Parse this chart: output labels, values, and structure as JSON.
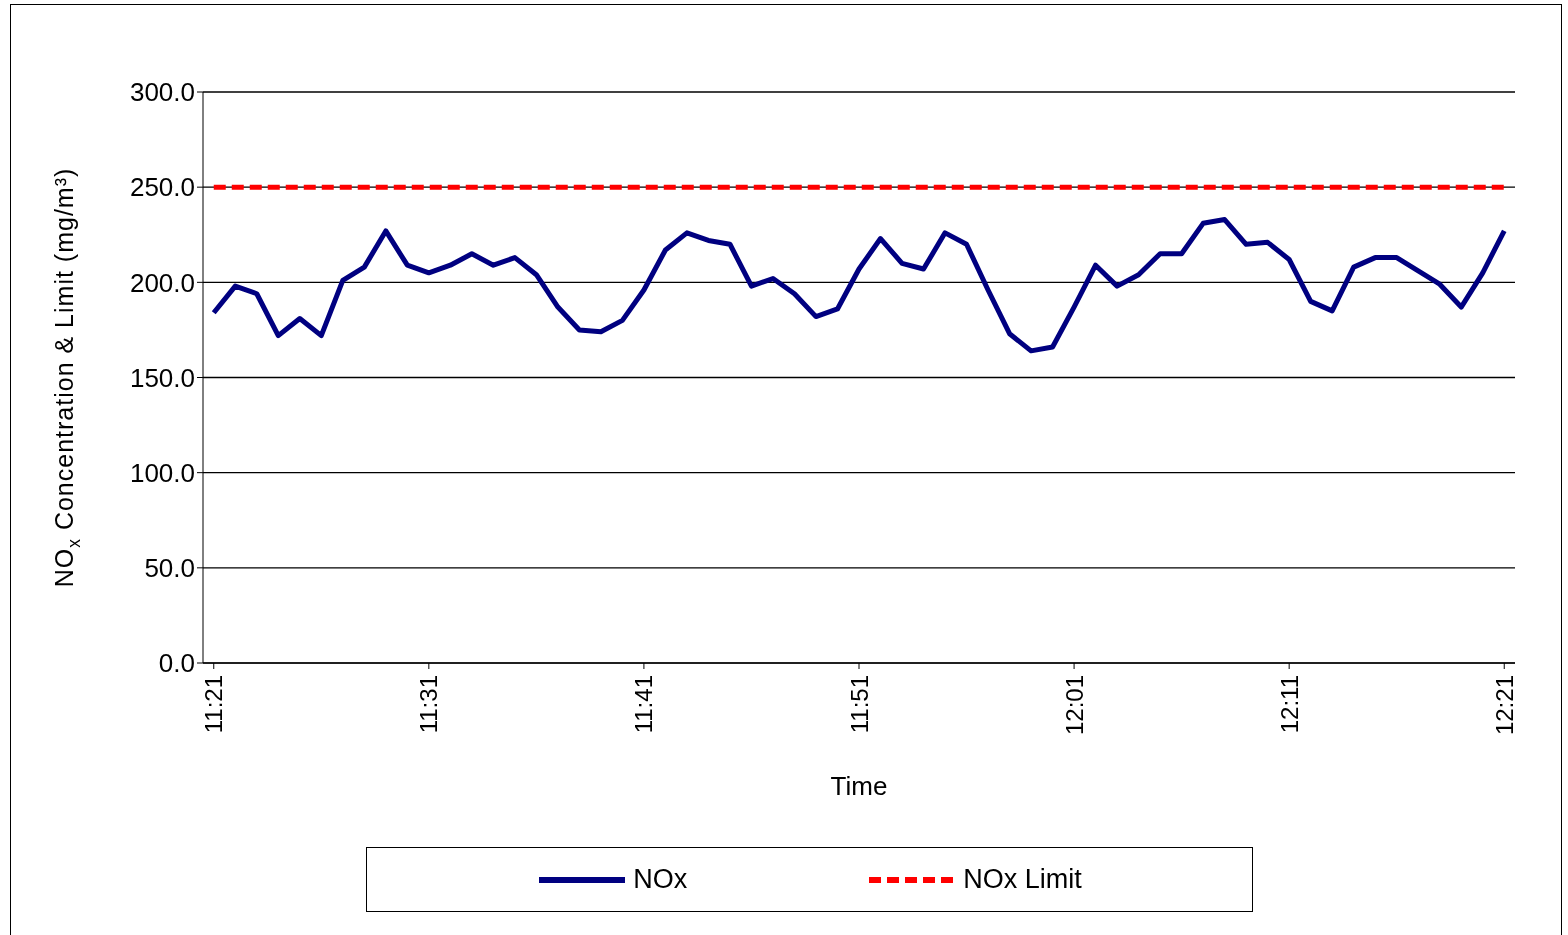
{
  "chart_data": {
    "type": "line",
    "xlabel": "Time",
    "ylabel": "NO$_{x}$ Concentration & Limit (mg/m³)",
    "categories": [
      "11:21",
      null,
      null,
      null,
      null,
      null,
      null,
      null,
      null,
      null,
      "11:31",
      null,
      null,
      null,
      null,
      null,
      null,
      null,
      null,
      null,
      "11:41",
      null,
      null,
      null,
      null,
      null,
      null,
      null,
      null,
      null,
      "11:51",
      null,
      null,
      null,
      null,
      null,
      null,
      null,
      null,
      null,
      "12:01",
      null,
      null,
      null,
      null,
      null,
      null,
      null,
      null,
      null,
      "12:11",
      null,
      null,
      null,
      null,
      null,
      null,
      null,
      null,
      null,
      "12:21"
    ],
    "series": [
      {
        "name": "NOx",
        "color": "#000080",
        "line_style": "solid",
        "values": [
          184,
          198,
          194,
          172,
          181,
          172,
          201,
          208,
          227,
          209,
          205,
          209,
          215,
          209,
          213,
          204,
          187,
          175,
          174,
          180,
          196,
          217,
          226,
          222,
          220,
          198,
          202,
          194,
          182,
          186,
          207,
          223,
          210,
          207,
          226,
          220,
          196,
          173,
          164,
          166,
          187,
          209,
          198,
          204,
          215,
          215,
          231,
          233,
          220,
          221,
          212,
          190,
          185,
          208,
          213,
          213,
          206,
          199,
          187,
          205,
          227
        ]
      },
      {
        "name": "NOx Limit",
        "color": "#ff0000",
        "line_style": "dashed",
        "values": [
          250,
          250,
          250,
          250,
          250,
          250,
          250,
          250,
          250,
          250,
          250,
          250,
          250,
          250,
          250,
          250,
          250,
          250,
          250,
          250,
          250,
          250,
          250,
          250,
          250,
          250,
          250,
          250,
          250,
          250,
          250,
          250,
          250,
          250,
          250,
          250,
          250,
          250,
          250,
          250,
          250,
          250,
          250,
          250,
          250,
          250,
          250,
          250,
          250,
          250,
          250,
          250,
          250,
          250,
          250,
          250,
          250,
          250,
          250,
          250,
          250
        ]
      }
    ],
    "ylim": [
      0,
      300
    ],
    "yticks": [
      {
        "value": 0,
        "label": "0.0"
      },
      {
        "value": 50,
        "label": "50.0"
      },
      {
        "value": 100,
        "label": "100.0"
      },
      {
        "value": 150,
        "label": "150.0"
      },
      {
        "value": 200,
        "label": "200.0"
      },
      {
        "value": 250,
        "label": "250.0"
      },
      {
        "value": 300,
        "label": "300.0"
      }
    ],
    "grid": "y",
    "legend": "bottom",
    "marker": "none"
  }
}
